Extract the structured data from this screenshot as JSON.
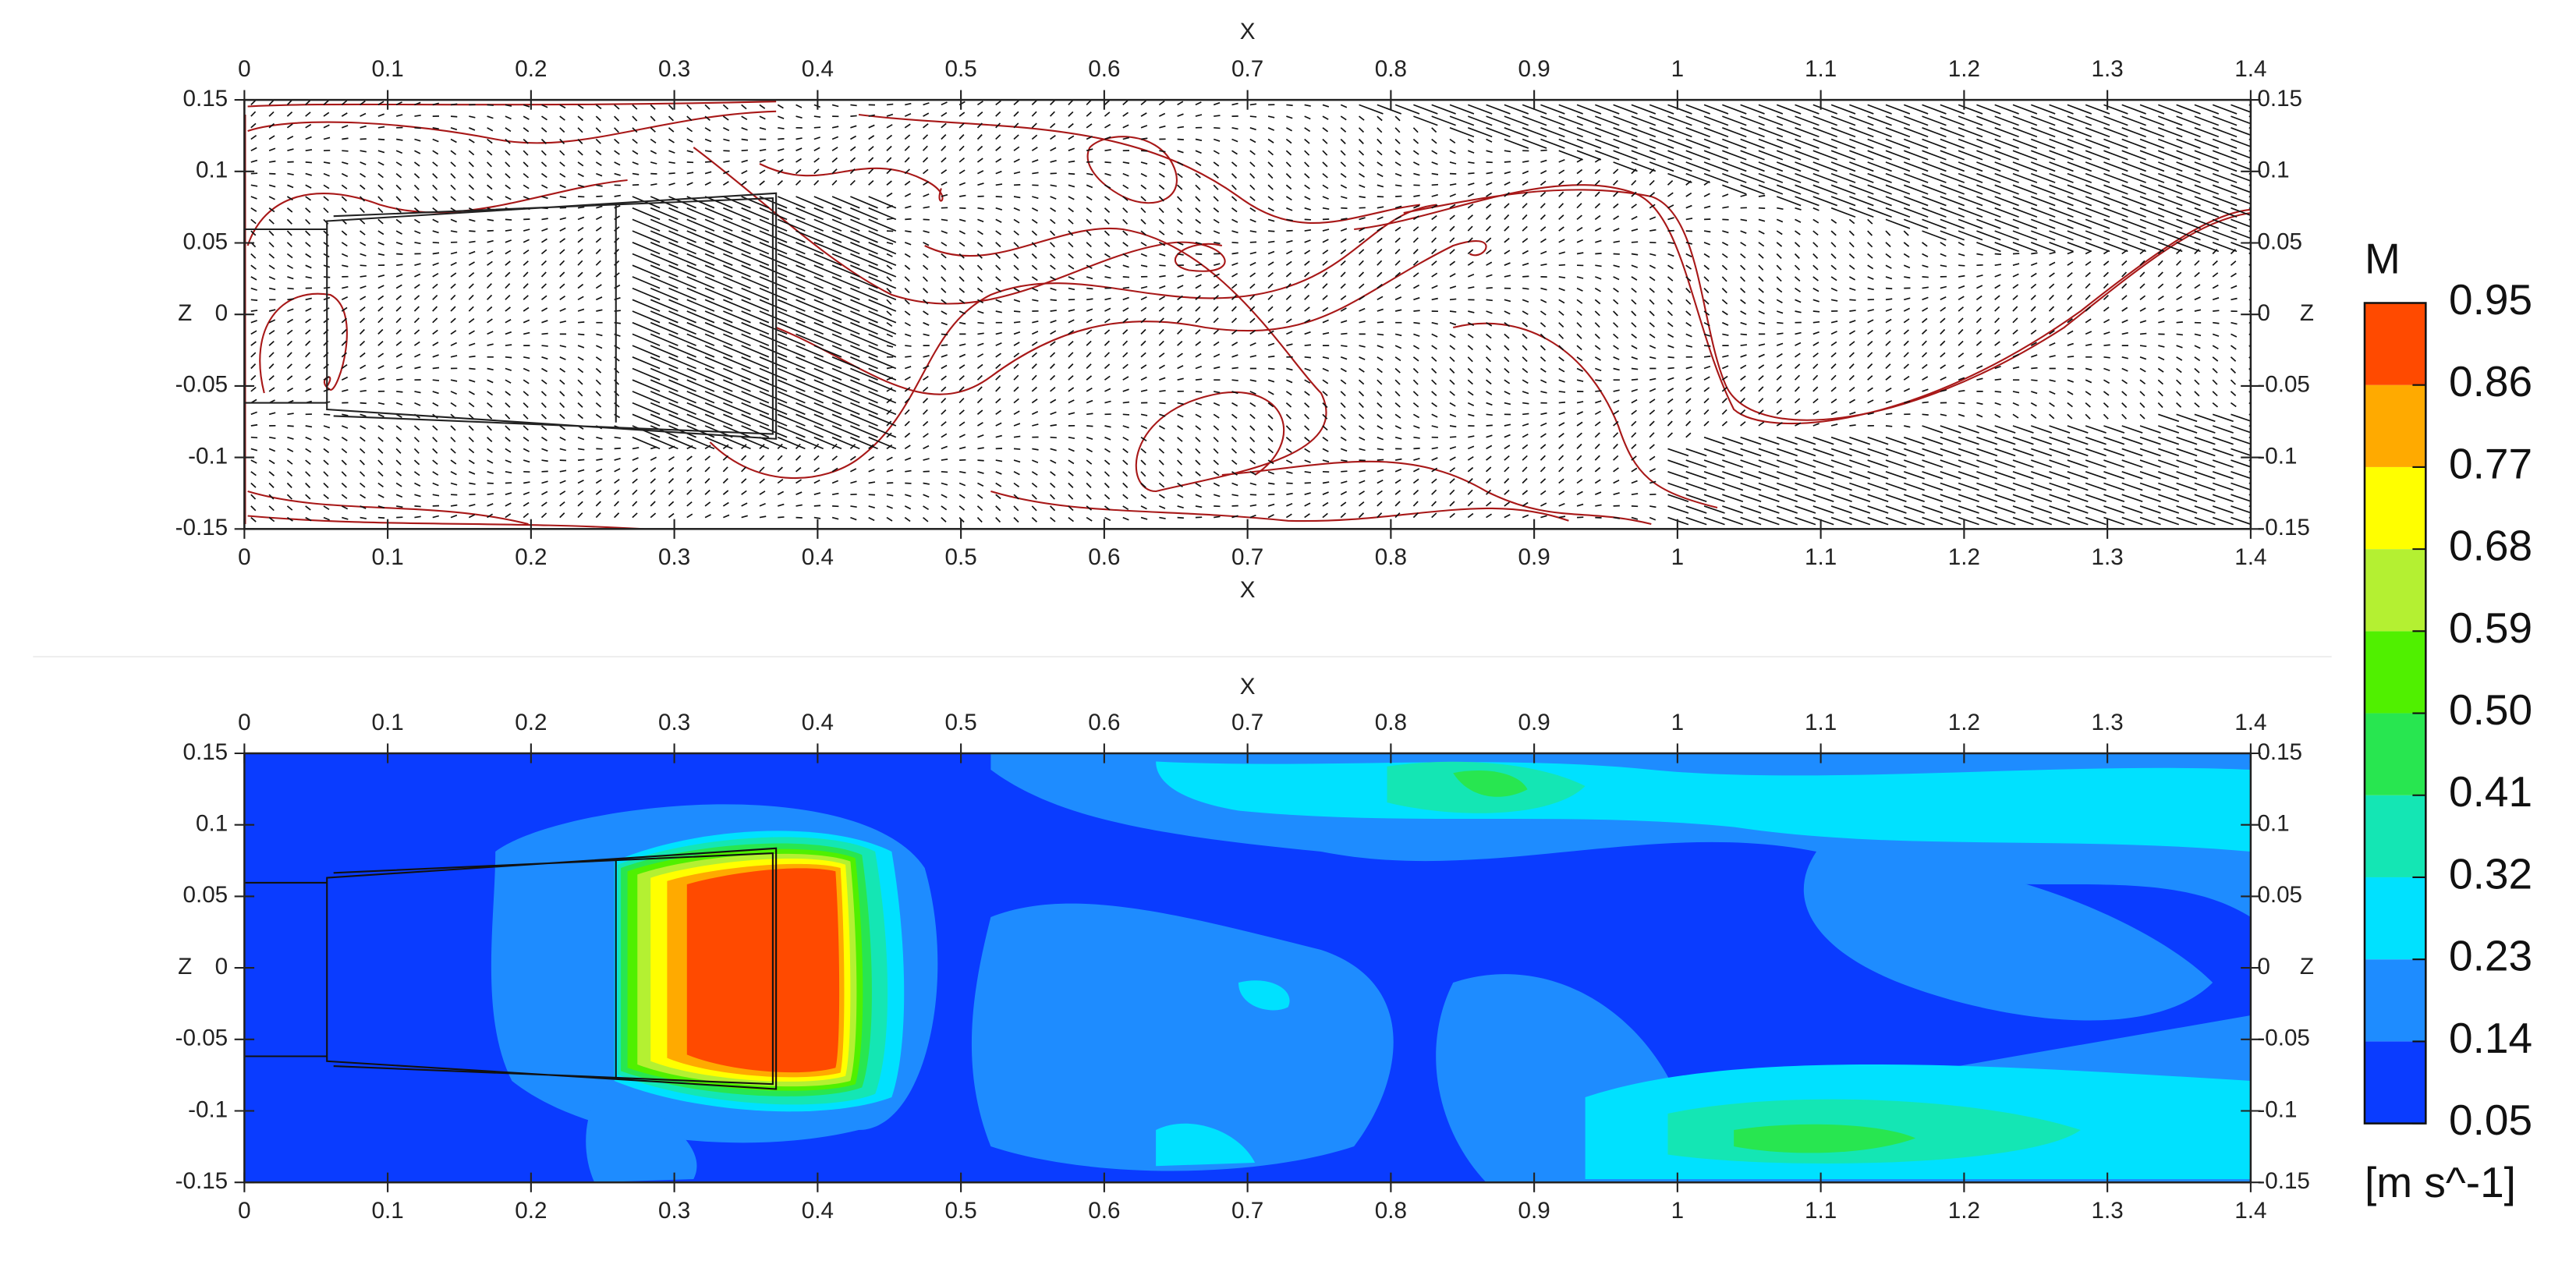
{
  "chart_data": [
    {
      "type": "vector-field",
      "xlabel": "X",
      "ylabel": "Z",
      "xlim": [
        0,
        1.4
      ],
      "ylim": [
        -0.15,
        0.15
      ],
      "xticks": [
        0,
        0.1,
        0.2,
        0.3,
        0.4,
        0.5,
        0.6,
        0.7,
        0.8,
        0.9,
        1,
        1.1,
        1.2,
        1.3,
        1.4
      ],
      "yticks": [
        0.15,
        0.1,
        0.05,
        0,
        -0.05,
        -0.1,
        -0.15
      ]
    },
    {
      "type": "contour",
      "xlabel": "X",
      "ylabel": "Z",
      "xlim": [
        0,
        1.4
      ],
      "ylim": [
        -0.15,
        0.15
      ],
      "xticks": [
        0,
        0.1,
        0.2,
        0.3,
        0.4,
        0.5,
        0.6,
        0.7,
        0.8,
        0.9,
        1,
        1.1,
        1.2,
        1.3,
        1.4
      ],
      "yticks": [
        0.15,
        0.1,
        0.05,
        0,
        -0.05,
        -0.1,
        -0.15
      ],
      "colorbar": {
        "title": "M",
        "unit": "[m s^-1]",
        "levels": [
          {
            "value": 0.05,
            "label": "0.05"
          },
          0.14,
          0.23,
          0.32,
          0.41,
          {
            "value": 0.5,
            "label": "0.50"
          },
          0.59,
          0.68,
          0.77,
          0.86,
          0.95
        ],
        "colors": [
          "#0a3cff",
          "#1e8cff",
          "#00e1ff",
          "#14e6b4",
          "#28e650",
          "#50f000",
          "#b4f032",
          "#ffff00",
          "#ffaa00",
          "#ff4a00"
        ]
      }
    }
  ]
}
